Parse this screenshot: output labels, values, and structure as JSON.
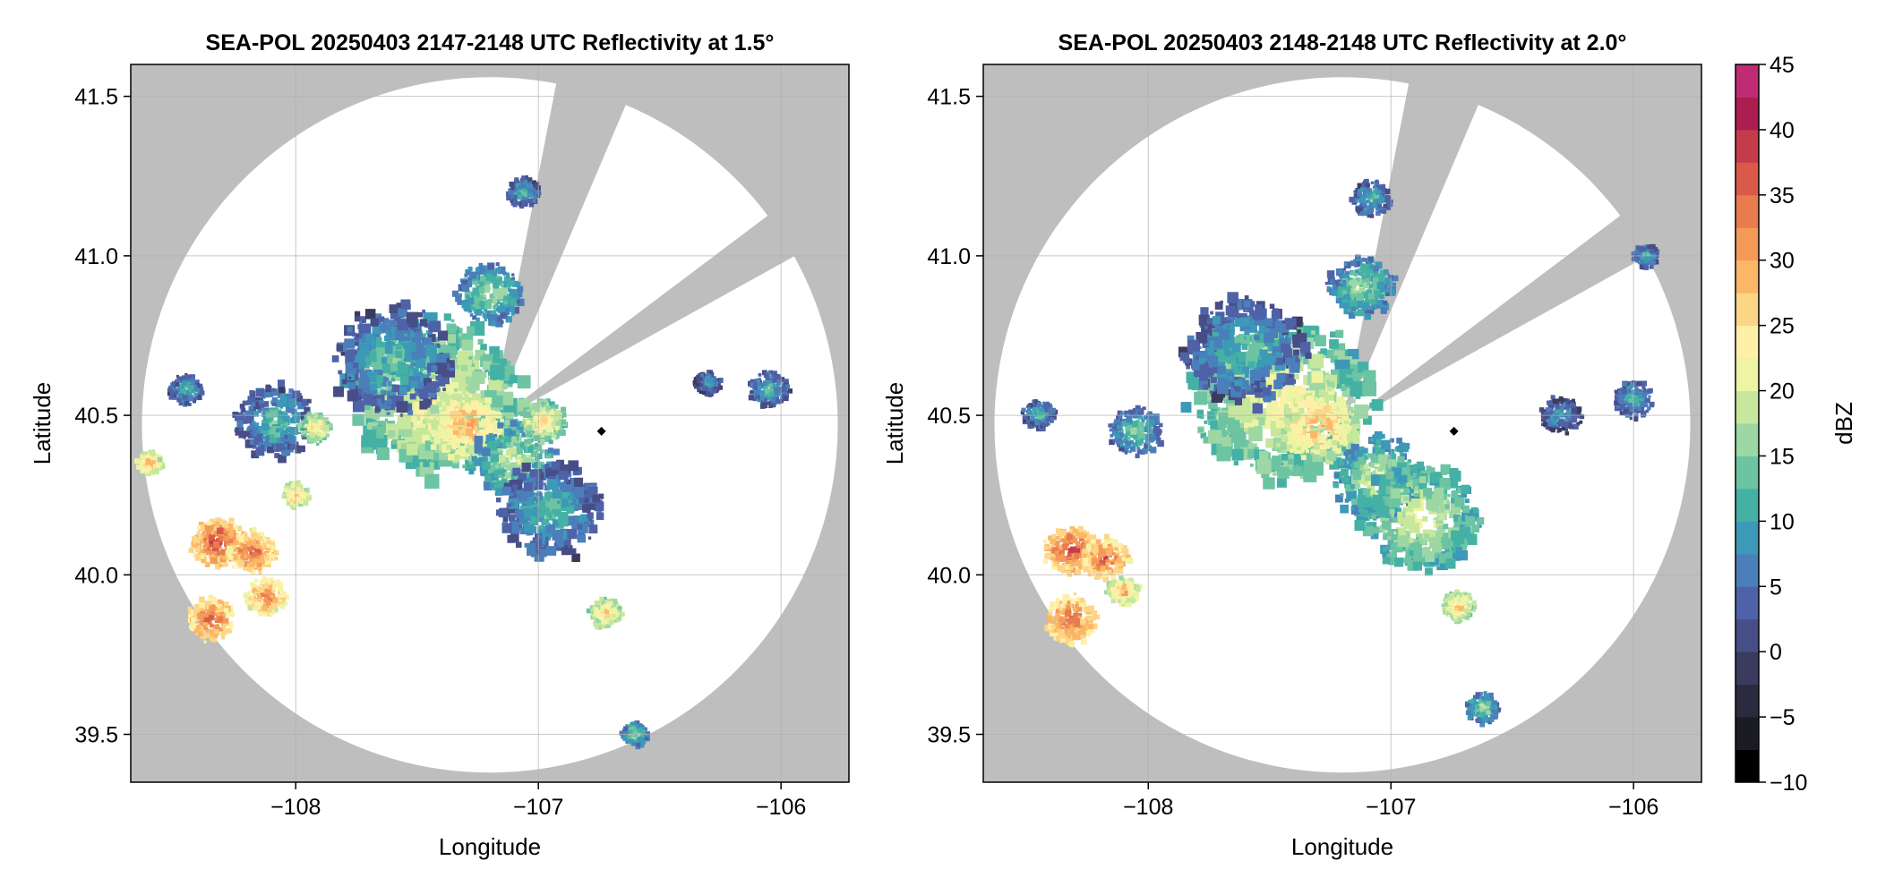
{
  "figure": {
    "colors": {
      "background": "#ffffff",
      "masked_area": "#bebebe",
      "grid": "#b0b0b0",
      "axes_frame": "#000000",
      "radar_marker": "#000000"
    }
  },
  "chart_data": [
    {
      "type": "heatmap",
      "title": "SEA-POL 20250403 2147-2148 UTC Reflectivity at 1.5°",
      "xlabel": "Longitude",
      "ylabel": "Latitude",
      "xlim": [
        -108.68,
        -105.72
      ],
      "ylim": [
        39.35,
        41.6
      ],
      "xticks": [
        -108,
        -107,
        -106
      ],
      "xtick_labels": [
        "−108",
        "−107",
        "−106"
      ],
      "yticks": [
        39.5,
        40.0,
        40.5,
        41.0,
        41.5
      ],
      "ytick_labels": [
        "39.5",
        "40.0",
        "40.5",
        "41.0",
        "41.5"
      ],
      "grid": true,
      "radar_center": {
        "lon": -107.2,
        "lat": 40.47
      },
      "coverage_radius_deg_lat": 1.09,
      "blocked_sectors_deg_from_north": [
        [
          11,
          23
        ],
        [
          53,
          61
        ]
      ],
      "radar_marker": {
        "lon": -106.74,
        "lat": 40.45
      },
      "echo_cells": [
        {
          "lon": -107.42,
          "lat": 40.55,
          "r": 0.26,
          "dbz": 24
        },
        {
          "lon": -107.6,
          "lat": 40.67,
          "r": 0.18,
          "dbz": 14
        },
        {
          "lon": -107.3,
          "lat": 40.47,
          "r": 0.12,
          "dbz": 30
        },
        {
          "lon": -107.1,
          "lat": 40.36,
          "r": 0.12,
          "dbz": 20
        },
        {
          "lon": -106.95,
          "lat": 40.2,
          "r": 0.16,
          "dbz": 14
        },
        {
          "lon": -106.98,
          "lat": 40.48,
          "r": 0.07,
          "dbz": 26
        },
        {
          "lon": -107.2,
          "lat": 40.88,
          "r": 0.1,
          "dbz": 18
        },
        {
          "lon": -107.06,
          "lat": 41.2,
          "r": 0.05,
          "dbz": 14
        },
        {
          "lon": -108.45,
          "lat": 40.58,
          "r": 0.05,
          "dbz": 14
        },
        {
          "lon": -108.08,
          "lat": 40.48,
          "r": 0.12,
          "dbz": 14
        },
        {
          "lon": -107.92,
          "lat": 40.46,
          "r": 0.05,
          "dbz": 26
        },
        {
          "lon": -108.6,
          "lat": 40.35,
          "r": 0.04,
          "dbz": 30
        },
        {
          "lon": -108.32,
          "lat": 40.1,
          "r": 0.08,
          "dbz": 38
        },
        {
          "lon": -108.18,
          "lat": 40.07,
          "r": 0.07,
          "dbz": 36
        },
        {
          "lon": -108.12,
          "lat": 39.93,
          "r": 0.06,
          "dbz": 34
        },
        {
          "lon": -108.35,
          "lat": 39.86,
          "r": 0.07,
          "dbz": 36
        },
        {
          "lon": -108.0,
          "lat": 40.25,
          "r": 0.04,
          "dbz": 30
        },
        {
          "lon": -106.72,
          "lat": 39.88,
          "r": 0.05,
          "dbz": 28
        },
        {
          "lon": -106.6,
          "lat": 39.5,
          "r": 0.04,
          "dbz": 18
        },
        {
          "lon": -106.05,
          "lat": 40.58,
          "r": 0.06,
          "dbz": 14
        },
        {
          "lon": -106.3,
          "lat": 40.6,
          "r": 0.04,
          "dbz": 12
        }
      ]
    },
    {
      "type": "heatmap",
      "title": "SEA-POL 20250403 2148-2148 UTC Reflectivity at 2.0°",
      "xlabel": "Longitude",
      "ylabel": "Latitude",
      "xlim": [
        -108.68,
        -105.72
      ],
      "ylim": [
        39.35,
        41.6
      ],
      "xticks": [
        -108,
        -107,
        -106
      ],
      "xtick_labels": [
        "−108",
        "−107",
        "−106"
      ],
      "yticks": [
        39.5,
        40.0,
        40.5,
        41.0,
        41.5
      ],
      "ytick_labels": [
        "39.5",
        "40.0",
        "40.5",
        "41.0",
        "41.5"
      ],
      "grid": true,
      "radar_center": {
        "lon": -107.2,
        "lat": 40.47
      },
      "coverage_radius_deg_lat": 1.09,
      "blocked_sectors_deg_from_north": [
        [
          11,
          23
        ],
        [
          53,
          61
        ]
      ],
      "radar_marker": {
        "lon": -106.74,
        "lat": 40.45
      },
      "echo_cells": [
        {
          "lon": -107.45,
          "lat": 40.55,
          "r": 0.27,
          "dbz": 24
        },
        {
          "lon": -107.6,
          "lat": 40.7,
          "r": 0.18,
          "dbz": 14
        },
        {
          "lon": -107.3,
          "lat": 40.47,
          "r": 0.12,
          "dbz": 30
        },
        {
          "lon": -107.05,
          "lat": 40.3,
          "r": 0.14,
          "dbz": 20
        },
        {
          "lon": -106.88,
          "lat": 40.18,
          "r": 0.18,
          "dbz": 22
        },
        {
          "lon": -107.12,
          "lat": 40.9,
          "r": 0.1,
          "dbz": 18
        },
        {
          "lon": -107.08,
          "lat": 41.18,
          "r": 0.06,
          "dbz": 14
        },
        {
          "lon": -108.45,
          "lat": 40.5,
          "r": 0.05,
          "dbz": 14
        },
        {
          "lon": -108.05,
          "lat": 40.45,
          "r": 0.08,
          "dbz": 16
        },
        {
          "lon": -108.32,
          "lat": 40.08,
          "r": 0.08,
          "dbz": 38
        },
        {
          "lon": -108.18,
          "lat": 40.05,
          "r": 0.07,
          "dbz": 36
        },
        {
          "lon": -108.32,
          "lat": 39.86,
          "r": 0.08,
          "dbz": 36
        },
        {
          "lon": -108.1,
          "lat": 39.95,
          "r": 0.05,
          "dbz": 30
        },
        {
          "lon": -106.72,
          "lat": 39.9,
          "r": 0.05,
          "dbz": 28
        },
        {
          "lon": -106.62,
          "lat": 39.58,
          "r": 0.05,
          "dbz": 18
        },
        {
          "lon": -106.0,
          "lat": 40.55,
          "r": 0.06,
          "dbz": 14
        },
        {
          "lon": -106.3,
          "lat": 40.5,
          "r": 0.06,
          "dbz": 12
        },
        {
          "lon": -105.95,
          "lat": 41.0,
          "r": 0.04,
          "dbz": 14
        }
      ]
    }
  ],
  "colorbar": {
    "label": "dBZ",
    "min": -10,
    "max": 45,
    "step": 2.5,
    "ticks": [
      -10,
      -5,
      0,
      5,
      10,
      15,
      20,
      25,
      30,
      35,
      40,
      45
    ],
    "tick_labels": [
      "−10",
      "−5",
      "0",
      "5",
      "10",
      "15",
      "20",
      "25",
      "30",
      "35",
      "40",
      "45"
    ],
    "colors": [
      "#000000",
      "#1b1b24",
      "#2b2a3e",
      "#3b3b5f",
      "#474d86",
      "#4f62a8",
      "#4a7fba",
      "#3d99b8",
      "#45b1a5",
      "#6cc4a2",
      "#9dd7a4",
      "#c7e79c",
      "#edf4a3",
      "#fff0a8",
      "#fdd587",
      "#fbb767",
      "#f39a58",
      "#e87c4e",
      "#d95a48",
      "#c43c4c",
      "#ab1f50",
      "#c02c74",
      "#d9489a",
      "#e77cb6",
      "#e9a6ca",
      "#c69bc8",
      "#9b72ad",
      "#6c4693",
      "#3f1a5c"
    ]
  }
}
